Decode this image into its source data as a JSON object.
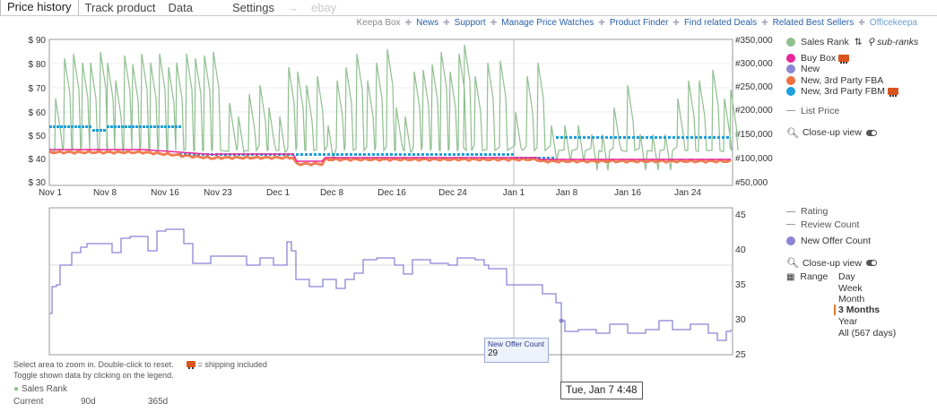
{
  "tabs": [
    {
      "label": "Price history",
      "active": true
    },
    {
      "label": "Track product"
    },
    {
      "label": "Data"
    },
    {
      "label": "Settings"
    },
    {
      "label": "→",
      "faded": true
    },
    {
      "label": "ebay",
      "faded": true
    }
  ],
  "links": [
    "Keepa Box",
    "News",
    "Support",
    "Manage Price Watches",
    "Product Finder",
    "Find related Deals",
    "Related Best Sellers",
    "Officekeepa"
  ],
  "top_chart": {
    "y_left_ticks": [
      "$ 90",
      "$ 80",
      "$ 70",
      "$ 60",
      "$ 50",
      "$ 40",
      "$ 30"
    ],
    "y_right_ticks": [
      "#350,000",
      "#300,000",
      "#250,000",
      "#200,000",
      "#150,000",
      "#100,000",
      "#50,000"
    ],
    "x_ticks": [
      "Nov 1",
      "Nov 8",
      "Nov 16",
      "Nov 23",
      "Dec 1",
      "Dec 8",
      "Dec 16",
      "Dec 24",
      "Jan 1",
      "Jan 8",
      "Jan 16",
      "Jan 24"
    ]
  },
  "bottom_chart": {
    "y_right_ticks": [
      "45",
      "40",
      "35",
      "30",
      "25"
    ]
  },
  "legend_top": {
    "sales_rank": "Sales Rank",
    "sub_ranks": "sub-ranks",
    "buy_box": "Buy Box",
    "new": "New",
    "new_fba": "New, 3rd Party FBA",
    "new_fbm": "New, 3rd Party FBM",
    "list_price": "List Price",
    "closeup": "Close-up view",
    "colors": {
      "sales_rank": "#8fbf8f",
      "buy_box": "#e8269a",
      "new": "#8b85d6",
      "new_fba": "#f07040",
      "new_fbm": "#1aa0dc"
    }
  },
  "legend_bottom": {
    "rating": "Rating",
    "review_count": "Review Count",
    "new_offer_count": "New Offer Count",
    "closeup": "Close-up view",
    "range_label": "Range",
    "range_options": [
      "Day",
      "Week",
      "Month",
      "3 Months",
      "Year",
      "All (567 days)"
    ],
    "range_selected": "3 Months"
  },
  "footnotes": {
    "line1": "Select area to zoom in. Double-click to reset.",
    "shipping": "= shipping included",
    "line2": "Toggle shown data by clicking on the legend.",
    "sales_rank": "Sales Rank",
    "stats": [
      "Current",
      "90d",
      "365d"
    ]
  },
  "tooltip": {
    "title": "New Offer Count",
    "value": "29"
  },
  "crosshair_time": "Tue, Jan 7 4:48"
}
